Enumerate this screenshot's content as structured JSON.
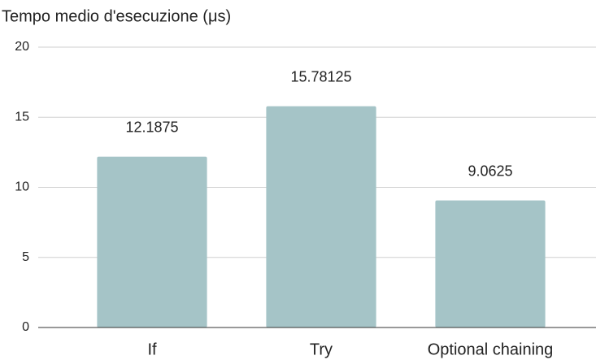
{
  "chart_data": {
    "type": "bar",
    "title": "Tempo medio d'esecuzione (μs)",
    "categories": [
      "If",
      "Try",
      "Optional chaining"
    ],
    "values": [
      12.1875,
      15.78125,
      9.0625
    ],
    "color": "#a5c4c7",
    "ylim": [
      0,
      20
    ],
    "yticks": [
      0,
      5,
      10,
      15,
      20
    ],
    "grid": true
  }
}
